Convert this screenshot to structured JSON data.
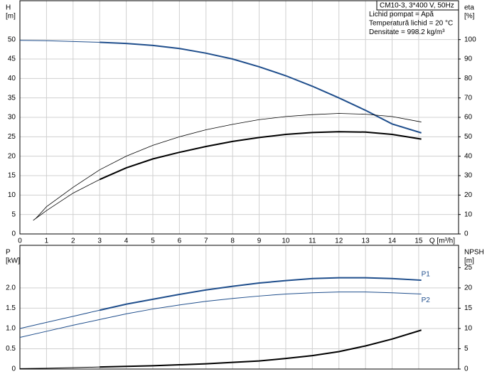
{
  "chart_data": [
    {
      "type": "line",
      "y_label": "H",
      "y_unit": "[m]",
      "y2_label": "eta",
      "y2_unit": "[%]",
      "x_label": "Q [m³/h]",
      "info_box": [
        "CM10-3, 3*400 V, 50Hz",
        "Lichid pompat = Apă",
        "Temperatură lichid = 20 °C",
        "Densitate = 998.2 kg/m³"
      ],
      "xlim": [
        0,
        16.5
      ],
      "xticks": [
        0,
        1,
        2,
        3,
        4,
        5,
        6,
        7,
        8,
        9,
        10,
        11,
        12,
        13,
        14,
        15
      ],
      "x_tick_labels": true,
      "ylim": [
        0,
        60
      ],
      "yticks": [
        0,
        5,
        10,
        15,
        20,
        25,
        30,
        35,
        40,
        45,
        50
      ],
      "y2lim": [
        0,
        120
      ],
      "y2ticks": [
        0,
        10,
        20,
        30,
        40,
        50,
        60,
        70,
        80,
        90,
        100
      ],
      "grid": true,
      "series": [
        {
          "color": "#1f4e8c",
          "width": 1,
          "x": [
            0,
            1,
            2,
            3
          ],
          "values": [
            49.8,
            49.7,
            49.5,
            49.3
          ]
        },
        {
          "color": "#1f4e8c",
          "width": 2,
          "x": [
            3,
            4,
            5,
            6,
            7,
            8,
            9,
            10,
            11,
            12,
            13,
            14,
            15.1
          ],
          "values": [
            49.3,
            49,
            48.5,
            47.7,
            46.5,
            45,
            43,
            40.7,
            38,
            35,
            31.8,
            28.3,
            26
          ]
        },
        {
          "color": "#000000",
          "width": 0.8,
          "axis": "y2",
          "x": [
            0.6,
            1,
            2,
            3,
            4,
            5,
            6,
            7,
            8,
            9,
            10,
            11,
            12,
            13,
            14,
            15.1
          ],
          "values": [
            8,
            14,
            24,
            33,
            40,
            45.6,
            50,
            53.6,
            56.4,
            58.8,
            60.4,
            61.4,
            62,
            61.6,
            60.4,
            57.6
          ]
        },
        {
          "color": "#000000",
          "width": 0.8,
          "axis": "y2",
          "x": [
            0.5,
            1,
            2,
            3
          ],
          "values": [
            7,
            12,
            21,
            28
          ]
        },
        {
          "color": "#000000",
          "width": 2,
          "axis": "y2",
          "x": [
            3,
            4,
            5,
            6,
            7,
            8,
            9,
            10,
            11,
            12,
            13,
            14,
            15.1
          ],
          "values": [
            28,
            34,
            38.6,
            42,
            45,
            47.6,
            49.6,
            51.2,
            52.2,
            52.6,
            52.4,
            51.2,
            48.8
          ]
        }
      ]
    },
    {
      "type": "line",
      "y_label": "P",
      "y_unit": "[kW]",
      "y2_label": "NPSH",
      "y2_unit": "[m]",
      "xlim": [
        0,
        16.5
      ],
      "xticks": [
        0,
        1,
        2,
        3,
        4,
        5,
        6,
        7,
        8,
        9,
        10,
        11,
        12,
        13,
        14,
        15
      ],
      "x_tick_labels": false,
      "ylim": [
        0,
        3.05
      ],
      "yticks": [
        0,
        0.5,
        {
          "value": 1,
          "label": "1.0"
        },
        1.5,
        {
          "value": 2,
          "label": "2.0"
        }
      ],
      "y2lim": [
        0,
        30.5
      ],
      "y2ticks": [
        0,
        5,
        10,
        15,
        20,
        25
      ],
      "grid": true,
      "series": [
        {
          "color": "#1f4e8c",
          "width": 1,
          "x": [
            0,
            1,
            2,
            3
          ],
          "values": [
            1.0,
            1.15,
            1.3,
            1.45
          ]
        },
        {
          "name": "P1",
          "color": "#1f4e8c",
          "width": 2,
          "x": [
            3,
            4,
            5,
            6,
            7,
            8,
            9,
            10,
            11,
            12,
            13,
            14,
            15.1
          ],
          "values": [
            1.45,
            1.6,
            1.72,
            1.84,
            1.95,
            2.04,
            2.12,
            2.18,
            2.23,
            2.25,
            2.25,
            2.23,
            2.19
          ]
        },
        {
          "name": "P2",
          "color": "#1f4e8c",
          "width": 1,
          "x": [
            0,
            1,
            2,
            3,
            4,
            5,
            6,
            7,
            8,
            9,
            10,
            11,
            12,
            13,
            14,
            15.1
          ],
          "values": [
            0.78,
            0.93,
            1.08,
            1.22,
            1.36,
            1.48,
            1.58,
            1.67,
            1.74,
            1.8,
            1.85,
            1.88,
            1.9,
            1.9,
            1.88,
            1.85
          ]
        },
        {
          "color": "#000000",
          "width": 1,
          "axis": "y2",
          "x": [
            0,
            1,
            2,
            3
          ],
          "values": [
            0.1,
            0.2,
            0.35,
            0.5
          ]
        },
        {
          "color": "#000000",
          "width": 2,
          "axis": "y2",
          "x": [
            3,
            5,
            7,
            9,
            10,
            11,
            12,
            13,
            14,
            15.1
          ],
          "values": [
            0.5,
            0.8,
            1.3,
            2,
            2.6,
            3.3,
            4.3,
            5.7,
            7.4,
            9.6
          ]
        }
      ]
    }
  ]
}
